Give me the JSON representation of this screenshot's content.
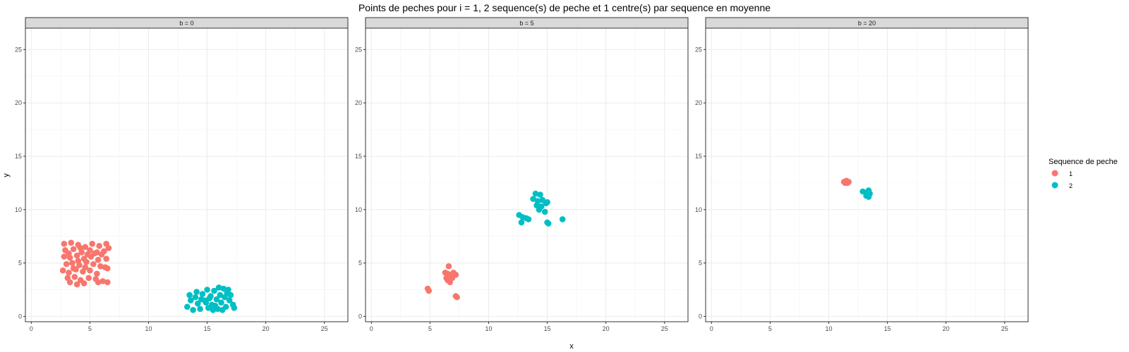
{
  "chart_data": {
    "type": "scatter",
    "title": "Points de peches pour i = 1, 2 sequence(s) de peche et 1 centre(s) par sequence en moyenne",
    "xlabel": "x",
    "ylabel": "y",
    "xlim": [
      -0.5,
      27
    ],
    "ylim": [
      -0.5,
      27
    ],
    "xticks": [
      "0",
      "5",
      "10",
      "15",
      "20",
      "25"
    ],
    "yticks": [
      "0",
      "5",
      "10",
      "15",
      "20",
      "25"
    ],
    "grid": true,
    "legend": {
      "title": "Sequence de peche",
      "position": "right",
      "entries": [
        {
          "label": "1",
          "color": "#F8766D"
        },
        {
          "label": "2",
          "color": "#00BFC4"
        }
      ]
    },
    "panels": [
      {
        "strip": "b = 0",
        "series": [
          {
            "color": "#F8766D",
            "points": [
              [
                2.8,
                6.8
              ],
              [
                3.4,
                6.9
              ],
              [
                4.0,
                6.7
              ],
              [
                4.6,
                6.5
              ],
              [
                5.2,
                6.8
              ],
              [
                5.8,
                6.6
              ],
              [
                6.4,
                6.8
              ],
              [
                2.9,
                6.2
              ],
              [
                3.6,
                6.3
              ],
              [
                4.3,
                6.0
              ],
              [
                5.0,
                6.2
              ],
              [
                5.6,
                6.0
              ],
              [
                6.2,
                6.1
              ],
              [
                6.6,
                6.4
              ],
              [
                2.8,
                5.6
              ],
              [
                3.3,
                5.5
              ],
              [
                3.9,
                5.7
              ],
              [
                4.5,
                5.4
              ],
              [
                5.1,
                5.6
              ],
              [
                5.7,
                5.3
              ],
              [
                6.4,
                5.4
              ],
              [
                3.0,
                4.9
              ],
              [
                3.5,
                5.0
              ],
              [
                4.1,
                4.8
              ],
              [
                4.7,
                5.1
              ],
              [
                5.3,
                4.9
              ],
              [
                5.9,
                4.7
              ],
              [
                6.3,
                4.6
              ],
              [
                2.7,
                4.3
              ],
              [
                3.2,
                4.1
              ],
              [
                3.8,
                4.4
              ],
              [
                4.4,
                4.2
              ],
              [
                5.0,
                4.3
              ],
              [
                5.6,
                4.0
              ],
              [
                6.5,
                4.5
              ],
              [
                3.1,
                3.6
              ],
              [
                3.7,
                3.7
              ],
              [
                4.2,
                3.4
              ],
              [
                4.9,
                3.6
              ],
              [
                5.5,
                3.5
              ],
              [
                6.1,
                3.3
              ],
              [
                6.5,
                3.2
              ],
              [
                3.3,
                3.2
              ],
              [
                3.9,
                3.0
              ],
              [
                4.5,
                3.1
              ],
              [
                5.7,
                3.2
              ],
              [
                4.0,
                5.2
              ],
              [
                4.8,
                5.8
              ],
              [
                3.6,
                4.5
              ],
              [
                5.4,
                5.9
              ],
              [
                4.2,
                6.4
              ],
              [
                3.2,
                5.9
              ],
              [
                6.0,
                5.8
              ],
              [
                4.6,
                4.6
              ]
            ]
          },
          {
            "color": "#00BFC4",
            "points": [
              [
                13.3,
                0.9
              ],
              [
                13.6,
                1.5
              ],
              [
                13.5,
                2.0
              ],
              [
                14.0,
                1.8
              ],
              [
                14.2,
                1.2
              ],
              [
                14.4,
                0.7
              ],
              [
                14.6,
                2.1
              ],
              [
                14.8,
                1.5
              ],
              [
                15.0,
                2.5
              ],
              [
                15.1,
                0.8
              ],
              [
                15.3,
                1.9
              ],
              [
                15.4,
                1.1
              ],
              [
                15.6,
                2.4
              ],
              [
                15.8,
                1.6
              ],
              [
                15.9,
                0.7
              ],
              [
                16.1,
                2.0
              ],
              [
                16.2,
                1.3
              ],
              [
                16.4,
                2.6
              ],
              [
                16.5,
                1.8
              ],
              [
                16.6,
                0.9
              ],
              [
                16.7,
                2.2
              ],
              [
                16.9,
                1.5
              ],
              [
                17.0,
                2.0
              ],
              [
                17.2,
                1.1
              ],
              [
                17.3,
                0.8
              ],
              [
                14.9,
                1.3
              ],
              [
                15.5,
                0.6
              ],
              [
                16.0,
                2.7
              ],
              [
                13.8,
                0.6
              ],
              [
                14.5,
                1.6
              ],
              [
                15.2,
                1.7
              ],
              [
                16.3,
                0.6
              ],
              [
                16.8,
                2.5
              ],
              [
                15.7,
                1.0
              ],
              [
                14.1,
                2.3
              ]
            ]
          }
        ]
      },
      {
        "strip": "b = 5",
        "series": [
          {
            "color": "#F8766D",
            "points": [
              [
                6.6,
                4.7
              ],
              [
                6.3,
                4.1
              ],
              [
                6.5,
                4.0
              ],
              [
                6.8,
                3.9
              ],
              [
                7.0,
                4.1
              ],
              [
                7.2,
                3.9
              ],
              [
                6.4,
                3.6
              ],
              [
                6.6,
                3.4
              ],
              [
                6.9,
                3.6
              ],
              [
                6.7,
                3.2
              ],
              [
                6.5,
                3.4
              ],
              [
                4.8,
                2.6
              ],
              [
                4.9,
                2.4
              ],
              [
                7.2,
                1.9
              ],
              [
                7.3,
                1.8
              ]
            ]
          },
          {
            "color": "#00BFC4",
            "points": [
              [
                14.0,
                11.5
              ],
              [
                14.4,
                11.4
              ],
              [
                13.8,
                11.0
              ],
              [
                14.2,
                10.8
              ],
              [
                14.6,
                10.9
              ],
              [
                14.9,
                10.6
              ],
              [
                14.1,
                10.4
              ],
              [
                14.5,
                10.3
              ],
              [
                14.3,
                10.0
              ],
              [
                15.0,
                10.7
              ],
              [
                14.8,
                9.8
              ],
              [
                12.6,
                9.5
              ],
              [
                12.9,
                9.3
              ],
              [
                13.2,
                9.2
              ],
              [
                13.4,
                9.1
              ],
              [
                12.8,
                8.8
              ],
              [
                15.0,
                8.8
              ],
              [
                15.1,
                8.7
              ],
              [
                16.3,
                9.1
              ]
            ]
          }
        ]
      },
      {
        "strip": "b = 20",
        "series": [
          {
            "color": "#F8766D",
            "points": [
              [
                11.3,
                12.6
              ],
              [
                11.5,
                12.7
              ],
              [
                11.7,
                12.6
              ],
              [
                11.4,
                12.5
              ],
              [
                11.6,
                12.5
              ]
            ]
          },
          {
            "color": "#00BFC4",
            "points": [
              [
                12.9,
                11.7
              ],
              [
                13.2,
                11.6
              ],
              [
                13.4,
                11.8
              ],
              [
                13.3,
                11.4
              ],
              [
                13.5,
                11.5
              ],
              [
                13.2,
                11.3
              ],
              [
                13.4,
                11.2
              ]
            ]
          }
        ]
      }
    ]
  }
}
